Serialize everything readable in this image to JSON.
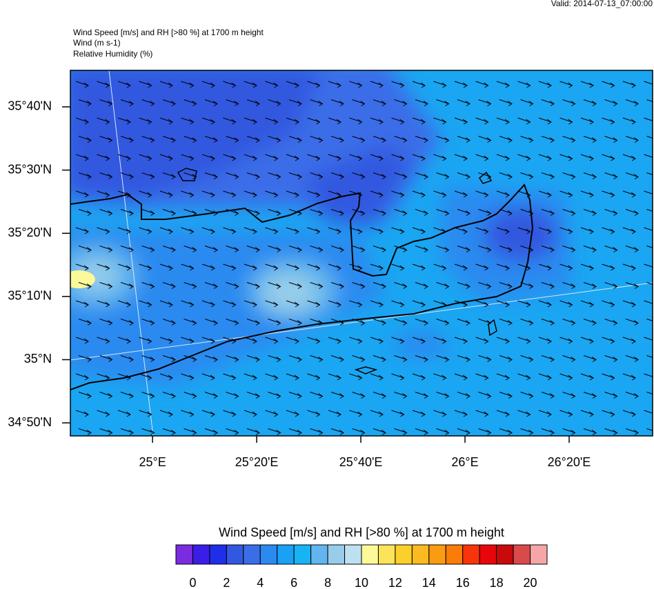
{
  "valid": "Valid: 2014-07-13_07:00:00",
  "header": {
    "lines": [
      "Wind Speed [m/s] and RH [>80 %] at 1700 m height",
      "Wind   (m s-1)",
      "Relative Humidity   (%)"
    ]
  },
  "map": {
    "xlim": [
      24.737,
      26.6005
    ],
    "ylim": [
      34.799,
      35.763
    ],
    "xticks": [
      {
        "value": 25,
        "label": "25°E"
      },
      {
        "value": 25.3333,
        "label": "25°20'E"
      },
      {
        "value": 25.6667,
        "label": "25°40'E"
      },
      {
        "value": 26,
        "label": "26°E"
      },
      {
        "value": 26.3333,
        "label": "26°20'E"
      }
    ],
    "yticks": [
      {
        "value": 34.8333,
        "label": "34°50'N"
      },
      {
        "value": 35,
        "label": "35°N"
      },
      {
        "value": 35.1667,
        "label": "35°10'N"
      },
      {
        "value": 35.3333,
        "label": "35°20'N"
      },
      {
        "value": 35.5,
        "label": "35°30'N"
      },
      {
        "value": 35.6667,
        "label": "35°40'N"
      }
    ]
  },
  "colorbar": {
    "title": "Wind Speed [m/s] and RH [>80 %] at 1700 m height",
    "ticks": [
      0,
      2,
      4,
      6,
      8,
      10,
      12,
      14,
      16,
      18,
      20
    ],
    "colors": [
      "#7b2be0",
      "#3a1ee8",
      "#1f2ee8",
      "#3358e0",
      "#3a6de8",
      "#2b8af0",
      "#1aa0f5",
      "#17b4f5",
      "#62b5ee",
      "#97cde9",
      "#bfe0f0",
      "#fcf99a",
      "#fbe45a",
      "#fbd02a",
      "#fbba20",
      "#fb9b12",
      "#fb7c08",
      "#f7340b",
      "#e8060a",
      "#c80a0a",
      "#d94a4a",
      "#f5a7a7"
    ]
  }
}
